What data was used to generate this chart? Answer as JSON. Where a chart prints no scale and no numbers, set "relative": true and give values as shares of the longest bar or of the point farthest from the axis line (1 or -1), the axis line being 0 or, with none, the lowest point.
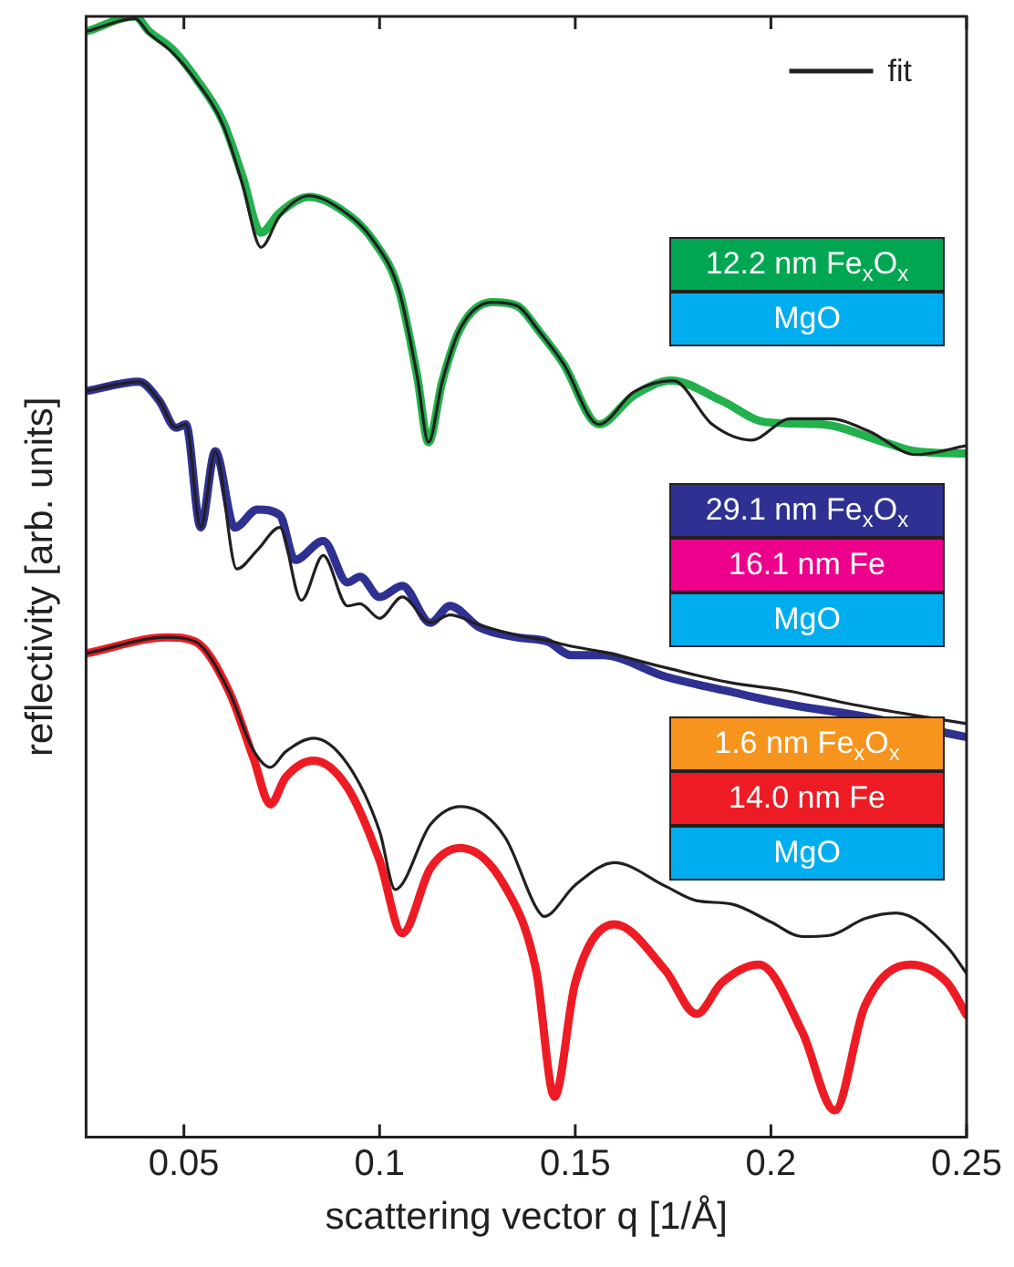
{
  "chart_data": {
    "type": "line",
    "relative": true,
    "xlabel": "scattering vector q [1/Å]",
    "ylabel": "reflectivity [arb. units]",
    "xlim": [
      0.025,
      0.25
    ],
    "xticks": [
      0.05,
      0.1,
      0.15,
      0.2,
      0.25
    ],
    "grid": false,
    "legend": "top right",
    "marker": "none",
    "line_style": "solid",
    "annotations": [
      "12.2 nm Fe$_{x}$O$_{x}$",
      "MgO",
      "29.1 nm Fe$_{x}$O$_{x}$",
      "16.1 nm Fe",
      "MgO",
      "1.6 nm Fe$_{x}$O$_{x}$",
      "14.0 nm Fe",
      "MgO"
    ],
    "series": [
      {
        "color": "#22b14c",
        "x": [
          0.0255,
          0.0375,
          0.041,
          0.047,
          0.053,
          0.06,
          0.065,
          0.0697,
          0.0745,
          0.082,
          0.09,
          0.0986,
          0.105,
          0.1096,
          0.1125,
          0.116,
          0.1207,
          0.1288,
          0.135,
          0.141,
          0.147,
          0.156,
          0.165,
          0.1745,
          0.1875,
          0.1986,
          0.213,
          0.229,
          0.237,
          0.25
        ],
        "values": [
          0.987,
          1.0,
          0.987,
          0.971,
          0.945,
          0.906,
          0.857,
          0.807,
          0.825,
          0.839,
          0.828,
          0.799,
          0.755,
          0.679,
          0.62,
          0.674,
          0.722,
          0.745,
          0.742,
          0.718,
          0.69,
          0.636,
          0.662,
          0.675,
          0.657,
          0.638,
          0.636,
          0.62,
          0.612,
          0.61
        ]
      },
      {
        "name": "fit",
        "color": "#231f20",
        "x": [
          0.0255,
          0.0375,
          0.041,
          0.047,
          0.053,
          0.06,
          0.065,
          0.0697,
          0.0745,
          0.082,
          0.09,
          0.0986,
          0.105,
          0.1096,
          0.1125,
          0.116,
          0.1207,
          0.1288,
          0.135,
          0.141,
          0.147,
          0.156,
          0.165,
          0.175,
          0.185,
          0.195,
          0.205,
          0.215,
          0.225,
          0.237,
          0.25
        ],
        "values": [
          0.987,
          0.998,
          0.985,
          0.968,
          0.943,
          0.903,
          0.85,
          0.794,
          0.822,
          0.84,
          0.828,
          0.799,
          0.755,
          0.679,
          0.62,
          0.674,
          0.722,
          0.745,
          0.742,
          0.718,
          0.69,
          0.636,
          0.665,
          0.675,
          0.636,
          0.622,
          0.641,
          0.641,
          0.63,
          0.609,
          0.617
        ]
      },
      {
        "color": "#2e3192",
        "x": [
          0.0255,
          0.0385,
          0.0437,
          0.048,
          0.0505,
          0.0543,
          0.058,
          0.063,
          0.0688,
          0.0745,
          0.0784,
          0.0856,
          0.0918,
          0.095,
          0.1,
          0.1058,
          0.113,
          0.118,
          0.1255,
          0.135,
          0.143,
          0.149,
          0.157,
          0.173,
          0.189,
          0.2048,
          0.221,
          0.25
        ],
        "values": [
          0.666,
          0.674,
          0.657,
          0.633,
          0.636,
          0.544,
          0.612,
          0.544,
          0.56,
          0.555,
          0.515,
          0.532,
          0.495,
          0.5,
          0.482,
          0.492,
          0.459,
          0.474,
          0.455,
          0.446,
          0.442,
          0.43,
          0.43,
          0.411,
          0.398,
          0.386,
          0.377,
          0.357
        ]
      },
      {
        "color": "#231f20",
        "x": [
          0.0255,
          0.0385,
          0.0437,
          0.048,
          0.0505,
          0.0543,
          0.058,
          0.0635,
          0.0688,
          0.0745,
          0.08,
          0.0856,
          0.0918,
          0.095,
          0.1,
          0.1058,
          0.113,
          0.118,
          0.1255,
          0.135,
          0.143,
          0.149,
          0.157,
          0.173,
          0.189,
          0.2048,
          0.221,
          0.25
        ],
        "values": [
          0.666,
          0.674,
          0.657,
          0.633,
          0.636,
          0.544,
          0.612,
          0.507,
          0.524,
          0.544,
          0.479,
          0.519,
          0.474,
          0.476,
          0.463,
          0.482,
          0.459,
          0.466,
          0.457,
          0.448,
          0.443,
          0.438,
          0.433,
          0.419,
          0.406,
          0.398,
          0.386,
          0.369
        ]
      },
      {
        "color": "#ed1c24",
        "x": [
          0.0255,
          0.0457,
          0.053,
          0.0615,
          0.0678,
          0.0721,
          0.076,
          0.0832,
          0.0918,
          0.1,
          0.1058,
          0.113,
          0.1207,
          0.132,
          0.14,
          0.1447,
          0.15,
          0.16,
          0.173,
          0.181,
          0.1875,
          0.197,
          0.208,
          0.2163,
          0.224,
          0.2356,
          0.245,
          0.25
        ],
        "values": [
          0.432,
          0.446,
          0.442,
          0.398,
          0.338,
          0.297,
          0.321,
          0.336,
          0.312,
          0.247,
          0.182,
          0.24,
          0.258,
          0.224,
          0.149,
          0.036,
          0.138,
          0.19,
          0.149,
          0.11,
          0.138,
          0.154,
          0.094,
          0.024,
          0.117,
          0.154,
          0.138,
          0.109
        ]
      },
      {
        "color": "#231f20",
        "x": [
          0.0255,
          0.0457,
          0.053,
          0.0615,
          0.0678,
          0.0721,
          0.076,
          0.0832,
          0.0918,
          0.1,
          0.104,
          0.113,
          0.1207,
          0.132,
          0.14,
          0.142,
          0.15,
          0.16,
          0.173,
          0.181,
          0.19,
          0.2,
          0.208,
          0.215,
          0.224,
          0.232,
          0.245,
          0.25
        ],
        "values": [
          0.432,
          0.446,
          0.442,
          0.398,
          0.345,
          0.33,
          0.344,
          0.356,
          0.333,
          0.273,
          0.221,
          0.279,
          0.295,
          0.268,
          0.205,
          0.197,
          0.225,
          0.245,
          0.224,
          0.211,
          0.208,
          0.192,
          0.179,
          0.18,
          0.195,
          0.2,
          0.17,
          0.146
        ]
      }
    ]
  }
}
